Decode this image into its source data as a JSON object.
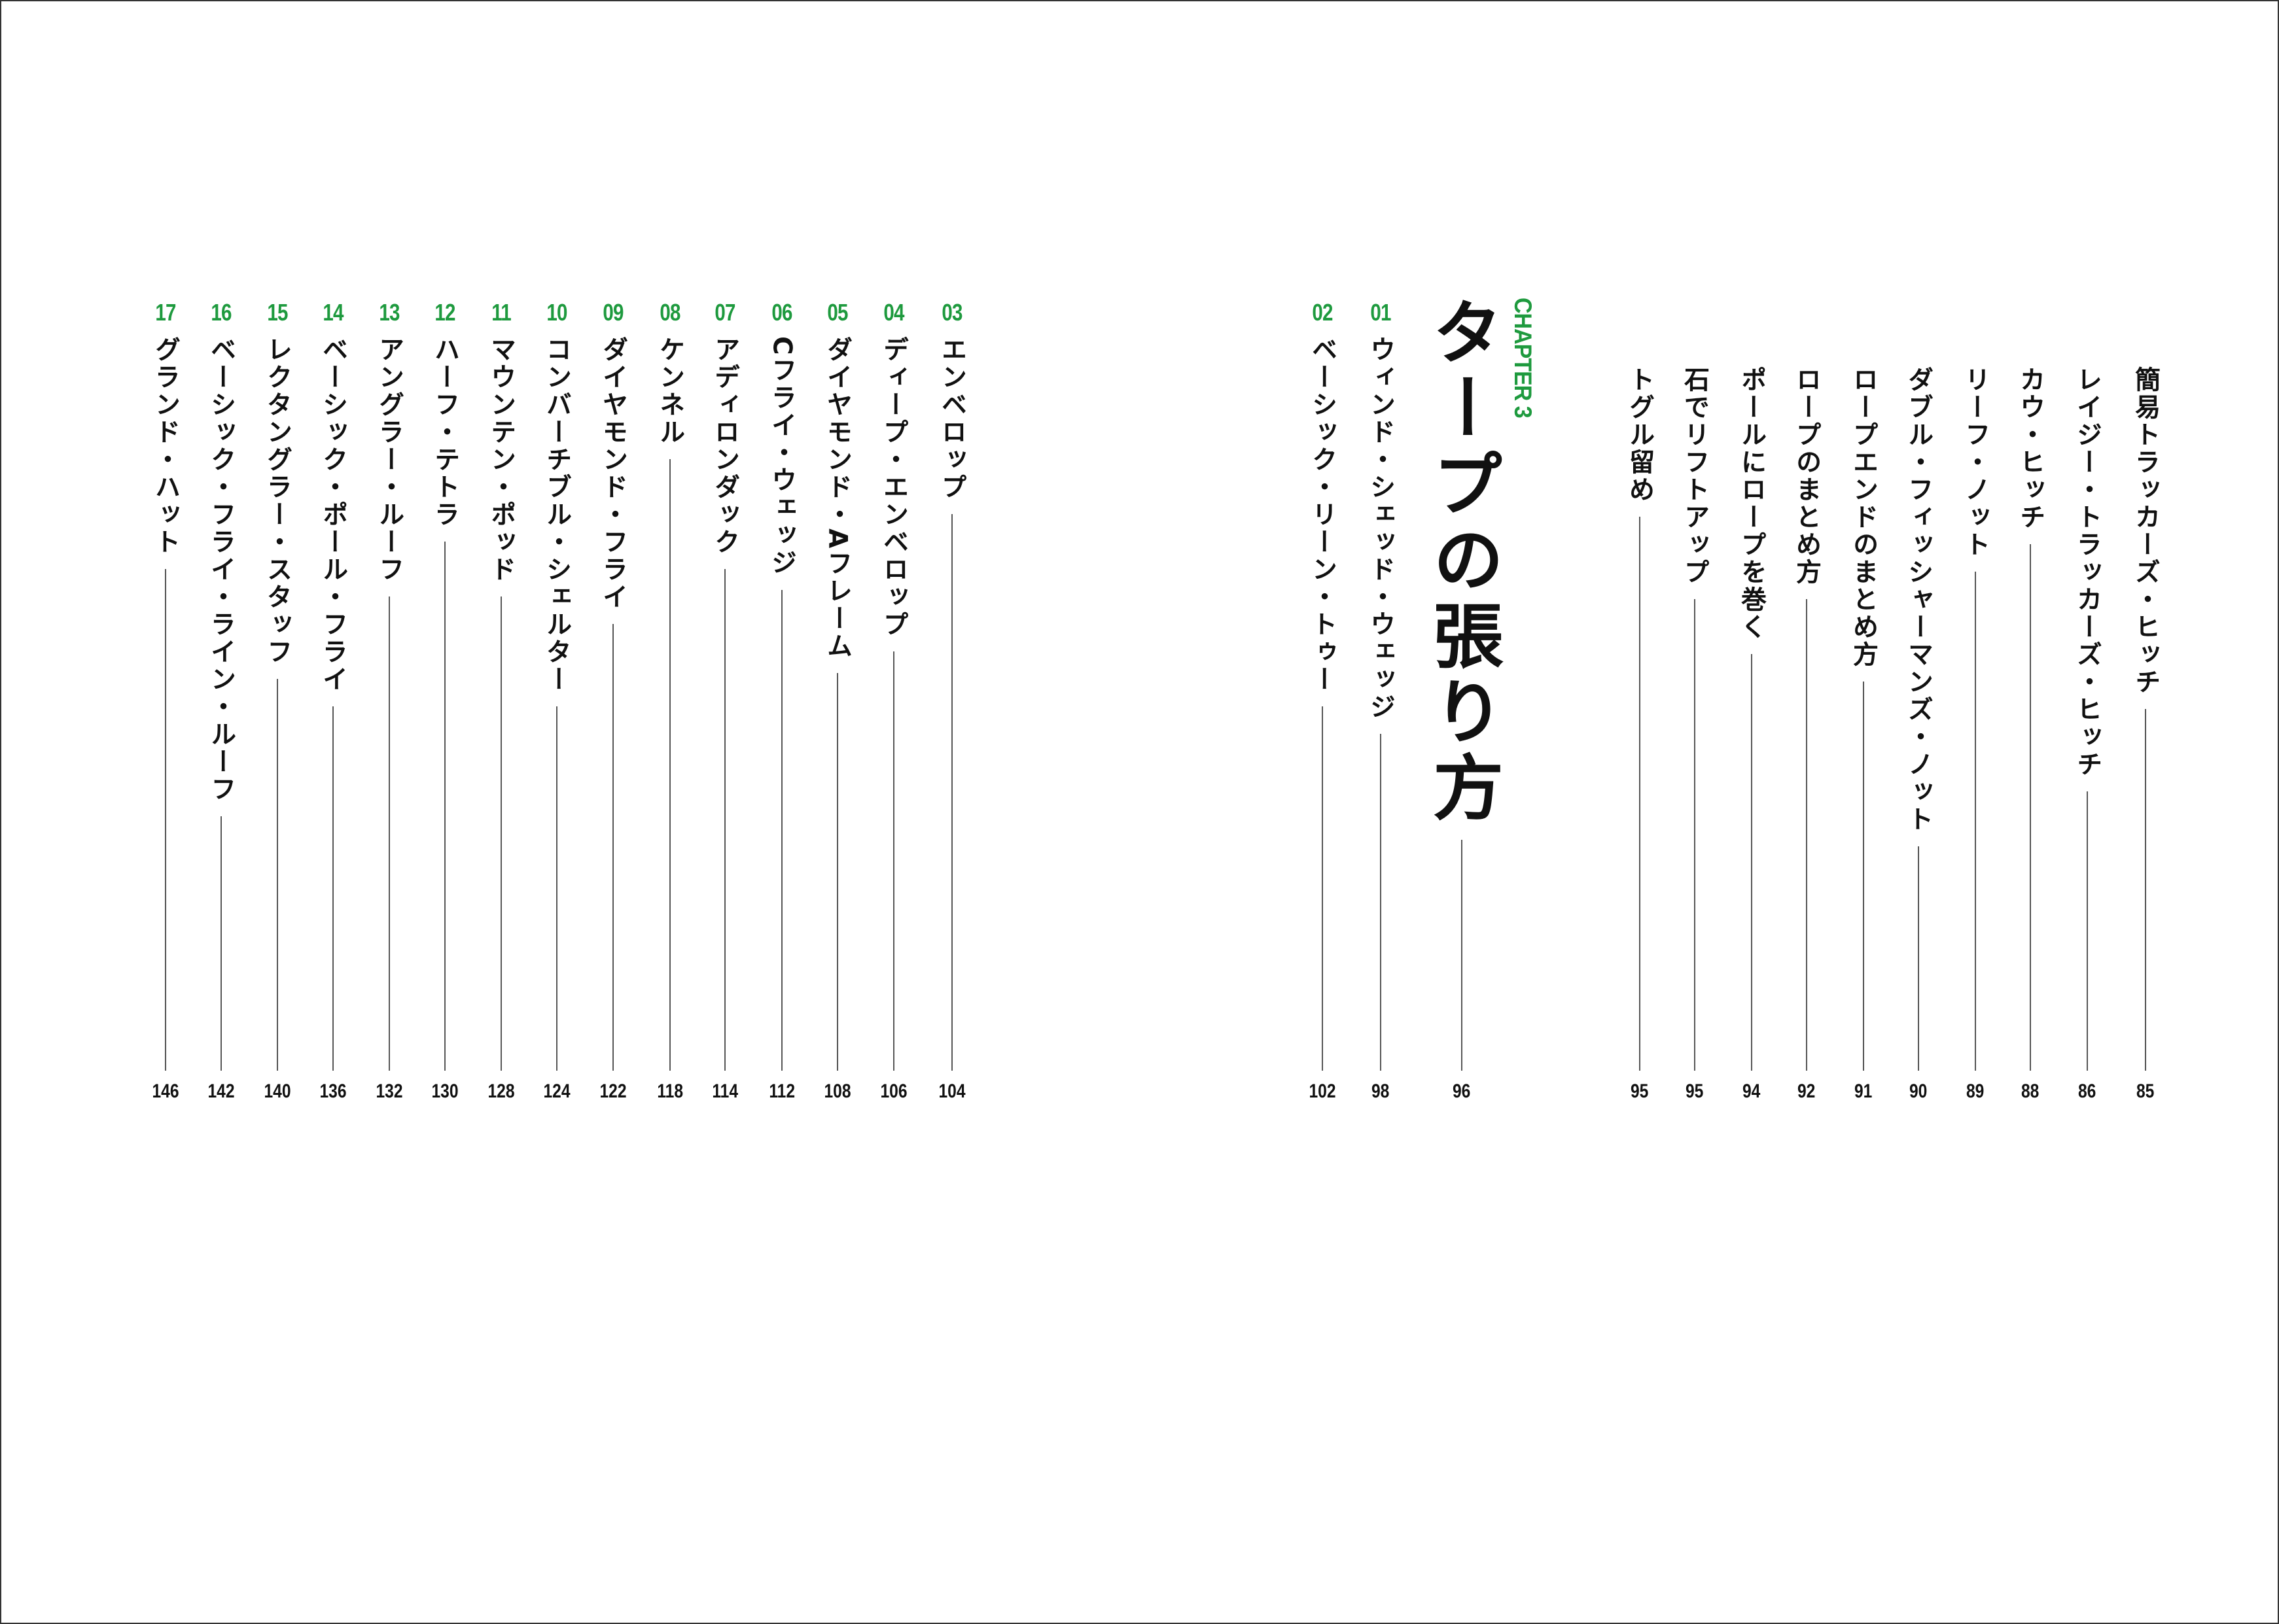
{
  "colors": {
    "accent": "#1e9a3e",
    "text": "#111111"
  },
  "chapter": {
    "label": "CHAPTER 3",
    "title": "タープの張り方",
    "page": "96"
  },
  "right_page_items": [
    {
      "title": "簡易トラッカーズ・ヒッチ",
      "page": "85"
    },
    {
      "title": "レイジー・トラッカーズ・ヒッチ",
      "page": "86"
    },
    {
      "title": "カウ・ヒッチ",
      "page": "88"
    },
    {
      "title": "リーフ・ノット",
      "page": "89"
    },
    {
      "title": "ダブル・フィッシャーマンズ・ノット",
      "page": "90"
    },
    {
      "title": "ロープエンドのまとめ方",
      "page": "91"
    },
    {
      "title": "ロープのまとめ方",
      "page": "92"
    },
    {
      "title": "ポールにロープを巻く",
      "page": "94"
    },
    {
      "title": "石でリフトアップ",
      "page": "95"
    },
    {
      "title": "トグル留め",
      "page": "95"
    }
  ],
  "numbered_items": [
    {
      "num": "01",
      "title": "ウィンド・シェッド・ウェッジ",
      "page": "98"
    },
    {
      "num": "02",
      "title": "ベーシック・リーン・トゥー",
      "page": "102"
    },
    {
      "num": "03",
      "title": "エンベロップ",
      "page": "104"
    },
    {
      "num": "04",
      "title": "ディープ・エンベロップ",
      "page": "106"
    },
    {
      "num": "05",
      "title": "ダイヤモンド・Aフレーム",
      "page": "108"
    },
    {
      "num": "06",
      "title": "Cフライ・ウェッジ",
      "page": "112"
    },
    {
      "num": "07",
      "title": "アディロンダック",
      "page": "114"
    },
    {
      "num": "08",
      "title": "ケンネル",
      "page": "118"
    },
    {
      "num": "09",
      "title": "ダイヤモンド・フライ",
      "page": "122"
    },
    {
      "num": "10",
      "title": "コンバーチブル・シェルター",
      "page": "124"
    },
    {
      "num": "11",
      "title": "マウンテン・ポッド",
      "page": "128"
    },
    {
      "num": "12",
      "title": "ハーフ・テトラ",
      "page": "130"
    },
    {
      "num": "13",
      "title": "アングラー・ルーフ",
      "page": "132"
    },
    {
      "num": "14",
      "title": "ベーシック・ポール・フライ",
      "page": "136"
    },
    {
      "num": "15",
      "title": "レクタングラー・スタッフ",
      "page": "140"
    },
    {
      "num": "16",
      "title": "ベーシック・フライ・ライン・ルーフ",
      "page": "142"
    },
    {
      "num": "17",
      "title": "グランド・ハット",
      "page": "146"
    }
  ]
}
